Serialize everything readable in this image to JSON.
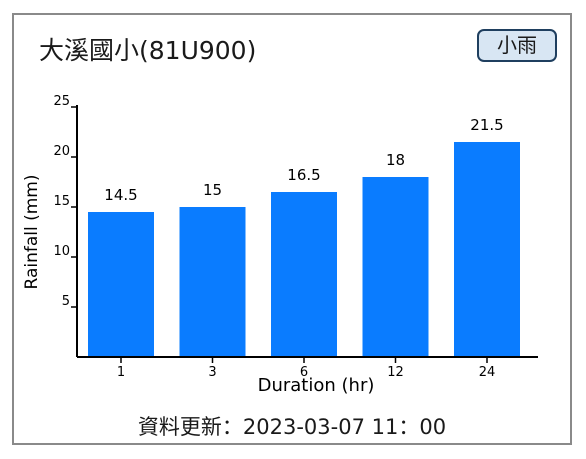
{
  "header": {
    "station": "大溪國小(81U900)",
    "badge": "小雨"
  },
  "footer": {
    "update_label": "資料更新：",
    "update_time": "2023-03-07  11：00"
  },
  "colors": {
    "bar": "#0a7cff",
    "axis": "#000000",
    "badge_bg": "#d8e6f3",
    "badge_border": "#1f3f5f",
    "frame": "#8a8a8a"
  },
  "chart_data": {
    "type": "bar",
    "categories": [
      "1",
      "3",
      "6",
      "12",
      "24"
    ],
    "values": [
      14.5,
      15,
      16.5,
      18,
      21.5
    ],
    "title": "",
    "xlabel": "Duration (hr)",
    "ylabel": "Rainfall (mm)",
    "ylim": [
      0,
      25
    ],
    "yticks": [
      5,
      10,
      15,
      20,
      25
    ],
    "grid": false,
    "legend": "none"
  }
}
